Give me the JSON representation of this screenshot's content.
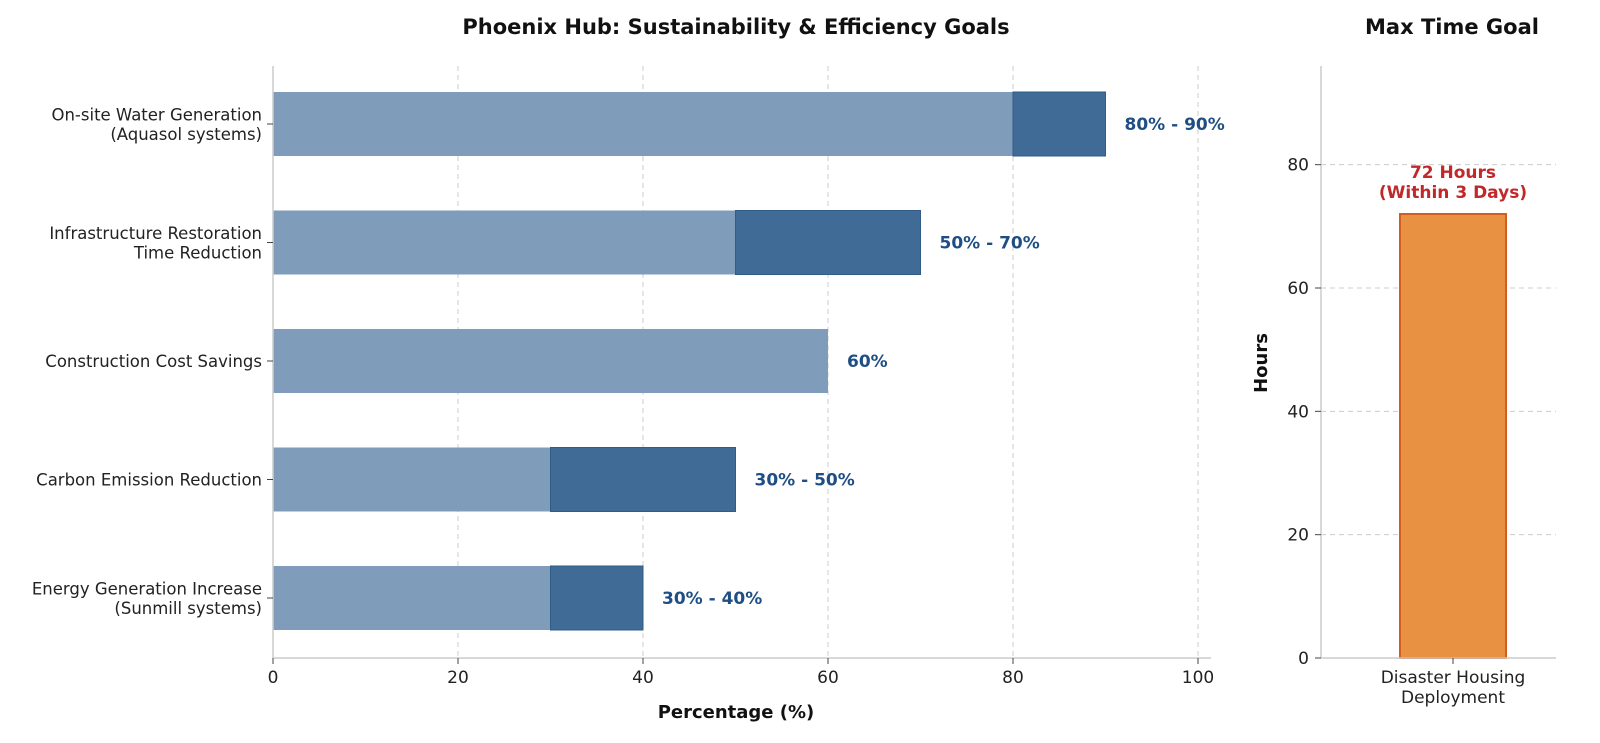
{
  "chart_data": [
    {
      "type": "bar",
      "orientation": "horizontal",
      "title": "Phoenix Hub: Sustainability & Efficiency Goals",
      "xlabel": "Percentage (%)",
      "ylabel": "",
      "xlim": [
        0,
        100
      ],
      "xticks": [
        "0",
        "20",
        "40",
        "60",
        "80",
        "100"
      ],
      "grid": "x",
      "categories": [
        [
          "On-site Water Generation",
          "(Aquasol systems)"
        ],
        [
          "Infrastructure Restoration",
          "Time Reduction"
        ],
        [
          "Construction Cost Savings"
        ],
        [
          "Carbon Emission Reduction"
        ],
        [
          "Energy Generation Increase",
          "(Sunmill systems)"
        ]
      ],
      "series": [
        {
          "values": [
            80,
            50,
            60,
            30,
            30
          ]
        },
        {
          "values": [
            90,
            70,
            null,
            50,
            40
          ]
        }
      ],
      "data_labels": [
        "80% - 90%",
        "50% - 70%",
        "60%",
        "30% - 50%",
        "30% - 40%"
      ],
      "colors": {
        "min": "#7f9dba",
        "range": "#3f6b96",
        "label": "#1f4e85"
      }
    },
    {
      "type": "bar",
      "title": "Max Time Goal",
      "xlabel": "",
      "ylabel": "Hours",
      "ylim": [
        0,
        96
      ],
      "yticks": [
        "0",
        "20",
        "40",
        "60",
        "80"
      ],
      "grid": "y",
      "categories": [
        [
          "Disaster Housing",
          "Deployment"
        ]
      ],
      "values": [
        72
      ],
      "data_labels": [
        [
          "72 Hours",
          "(Within 3 Days)"
        ]
      ],
      "colors": {
        "bar": "#e89142",
        "edge": "#d35d1e",
        "label": "#c0282a"
      }
    }
  ]
}
